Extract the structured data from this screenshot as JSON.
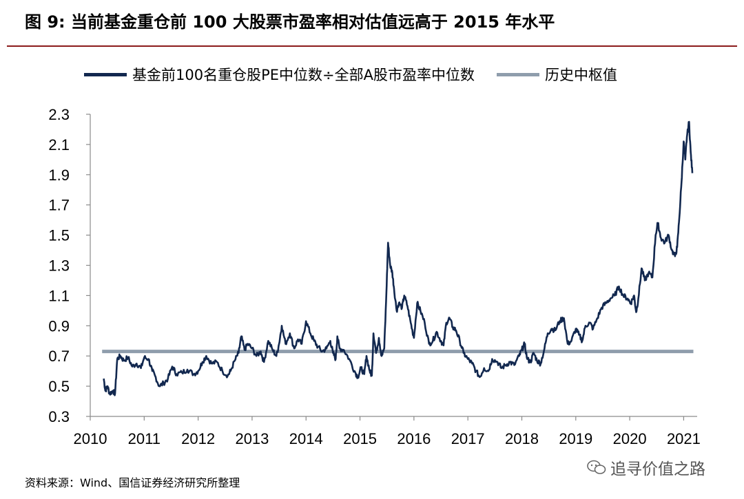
{
  "header": {
    "title": "图  9:  当前基金重仓前 100 大股票市盈率相对估值远高于 2015 年水平"
  },
  "legend": [
    {
      "label": "基金前100名重仓股PE中位数÷全部A股市盈率中位数",
      "color": "#12284f"
    },
    {
      "label": "历史中枢值",
      "color": "#8f9dac"
    }
  ],
  "footer": {
    "source": "资料来源：Wind、国信证券经济研究所整理",
    "watermark": "追寻价值之路"
  },
  "chart_data": {
    "type": "line",
    "title": "",
    "xlabel": "",
    "ylabel": "",
    "xlim": [
      2010,
      2021.25
    ],
    "ylim": [
      0.3,
      2.3
    ],
    "x_ticks": [
      "2010",
      "2011",
      "2012",
      "2013",
      "2014",
      "2015",
      "2016",
      "2017",
      "2018",
      "2019",
      "2020",
      "2021"
    ],
    "y_ticks": [
      "0.3",
      "0.5",
      "0.7",
      "0.9",
      "1.1",
      "1.3",
      "1.5",
      "1.7",
      "1.9",
      "2.1",
      "2.3"
    ],
    "grid": false,
    "legend_position": "top",
    "series": [
      {
        "name": "基金前100名重仓股PE中位数÷全部A股市盈率中位数",
        "color": "#12284f",
        "points": [
          [
            2010.25,
            0.55
          ],
          [
            2010.28,
            0.47
          ],
          [
            2010.32,
            0.5
          ],
          [
            2010.36,
            0.45
          ],
          [
            2010.42,
            0.47
          ],
          [
            2010.46,
            0.45
          ],
          [
            2010.5,
            0.68
          ],
          [
            2010.56,
            0.7
          ],
          [
            2010.62,
            0.67
          ],
          [
            2010.7,
            0.69
          ],
          [
            2010.78,
            0.63
          ],
          [
            2010.86,
            0.65
          ],
          [
            2010.94,
            0.62
          ],
          [
            2011.0,
            0.69
          ],
          [
            2011.08,
            0.68
          ],
          [
            2011.15,
            0.6
          ],
          [
            2011.2,
            0.57
          ],
          [
            2011.28,
            0.5
          ],
          [
            2011.36,
            0.52
          ],
          [
            2011.44,
            0.55
          ],
          [
            2011.52,
            0.63
          ],
          [
            2011.6,
            0.58
          ],
          [
            2011.7,
            0.59
          ],
          [
            2011.8,
            0.61
          ],
          [
            2011.92,
            0.58
          ],
          [
            2012.0,
            0.6
          ],
          [
            2012.08,
            0.66
          ],
          [
            2012.15,
            0.7
          ],
          [
            2012.25,
            0.65
          ],
          [
            2012.35,
            0.66
          ],
          [
            2012.45,
            0.6
          ],
          [
            2012.55,
            0.57
          ],
          [
            2012.6,
            0.6
          ],
          [
            2012.68,
            0.67
          ],
          [
            2012.75,
            0.72
          ],
          [
            2012.8,
            0.83
          ],
          [
            2012.86,
            0.74
          ],
          [
            2012.92,
            0.78
          ],
          [
            2013.0,
            0.75
          ],
          [
            2013.08,
            0.7
          ],
          [
            2013.16,
            0.73
          ],
          [
            2013.22,
            0.66
          ],
          [
            2013.3,
            0.8
          ],
          [
            2013.38,
            0.74
          ],
          [
            2013.45,
            0.7
          ],
          [
            2013.5,
            0.78
          ],
          [
            2013.55,
            0.9
          ],
          [
            2013.62,
            0.78
          ],
          [
            2013.7,
            0.85
          ],
          [
            2013.78,
            0.75
          ],
          [
            2013.85,
            0.81
          ],
          [
            2013.92,
            0.78
          ],
          [
            2014.0,
            0.93
          ],
          [
            2014.08,
            0.85
          ],
          [
            2014.15,
            0.8
          ],
          [
            2014.22,
            0.76
          ],
          [
            2014.3,
            0.73
          ],
          [
            2014.38,
            0.75
          ],
          [
            2014.45,
            0.8
          ],
          [
            2014.5,
            0.72
          ],
          [
            2014.55,
            0.68
          ],
          [
            2014.58,
            0.83
          ],
          [
            2014.62,
            0.75
          ],
          [
            2014.7,
            0.74
          ],
          [
            2014.8,
            0.68
          ],
          [
            2014.9,
            0.6
          ],
          [
            2014.96,
            0.56
          ],
          [
            2015.02,
            0.62
          ],
          [
            2015.08,
            0.58
          ],
          [
            2015.12,
            0.7
          ],
          [
            2015.18,
            0.6
          ],
          [
            2015.22,
            0.57
          ],
          [
            2015.25,
            0.85
          ],
          [
            2015.3,
            0.72
          ],
          [
            2015.35,
            0.82
          ],
          [
            2015.4,
            0.7
          ],
          [
            2015.45,
            0.75
          ],
          [
            2015.49,
            1.12
          ],
          [
            2015.52,
            1.45
          ],
          [
            2015.56,
            1.3
          ],
          [
            2015.6,
            1.25
          ],
          [
            2015.63,
            1.15
          ],
          [
            2015.68,
            1.0
          ],
          [
            2015.72,
            1.05
          ],
          [
            2015.78,
            1.02
          ],
          [
            2015.82,
            1.1
          ],
          [
            2015.88,
            1.03
          ],
          [
            2015.94,
            0.92
          ],
          [
            2016.0,
            0.82
          ],
          [
            2016.06,
            1.05
          ],
          [
            2016.12,
            1.0
          ],
          [
            2016.2,
            0.92
          ],
          [
            2016.28,
            0.78
          ],
          [
            2016.35,
            0.8
          ],
          [
            2016.42,
            0.86
          ],
          [
            2016.5,
            0.8
          ],
          [
            2016.55,
            0.77
          ],
          [
            2016.6,
            0.92
          ],
          [
            2016.66,
            0.95
          ],
          [
            2016.72,
            0.89
          ],
          [
            2016.78,
            0.87
          ],
          [
            2016.85,
            0.8
          ],
          [
            2016.92,
            0.72
          ],
          [
            2017.0,
            0.68
          ],
          [
            2017.08,
            0.65
          ],
          [
            2017.15,
            0.6
          ],
          [
            2017.22,
            0.56
          ],
          [
            2017.3,
            0.62
          ],
          [
            2017.38,
            0.6
          ],
          [
            2017.45,
            0.68
          ],
          [
            2017.55,
            0.66
          ],
          [
            2017.62,
            0.62
          ],
          [
            2017.7,
            0.64
          ],
          [
            2017.78,
            0.66
          ],
          [
            2017.86,
            0.64
          ],
          [
            2017.95,
            0.7
          ],
          [
            2018.0,
            0.74
          ],
          [
            2018.05,
            0.78
          ],
          [
            2018.1,
            0.68
          ],
          [
            2018.16,
            0.66
          ],
          [
            2018.22,
            0.72
          ],
          [
            2018.28,
            0.67
          ],
          [
            2018.35,
            0.65
          ],
          [
            2018.42,
            0.75
          ],
          [
            2018.48,
            0.85
          ],
          [
            2018.55,
            0.88
          ],
          [
            2018.62,
            0.87
          ],
          [
            2018.7,
            0.93
          ],
          [
            2018.78,
            0.95
          ],
          [
            2018.85,
            0.78
          ],
          [
            2018.92,
            0.8
          ],
          [
            2019.0,
            0.88
          ],
          [
            2019.06,
            0.84
          ],
          [
            2019.12,
            0.8
          ],
          [
            2019.18,
            0.9
          ],
          [
            2019.26,
            0.92
          ],
          [
            2019.32,
            0.88
          ],
          [
            2019.4,
            0.95
          ],
          [
            2019.48,
            1.02
          ],
          [
            2019.56,
            1.05
          ],
          [
            2019.64,
            1.08
          ],
          [
            2019.72,
            1.1
          ],
          [
            2019.8,
            1.16
          ],
          [
            2019.88,
            1.1
          ],
          [
            2019.96,
            1.08
          ],
          [
            2020.02,
            1.05
          ],
          [
            2020.08,
            1.1
          ],
          [
            2020.12,
            0.99
          ],
          [
            2020.16,
            1.08
          ],
          [
            2020.22,
            1.28
          ],
          [
            2020.28,
            1.2
          ],
          [
            2020.35,
            1.25
          ],
          [
            2020.42,
            1.22
          ],
          [
            2020.48,
            1.5
          ],
          [
            2020.52,
            1.58
          ],
          [
            2020.58,
            1.48
          ],
          [
            2020.65,
            1.45
          ],
          [
            2020.72,
            1.5
          ],
          [
            2020.78,
            1.4
          ],
          [
            2020.84,
            1.36
          ],
          [
            2020.88,
            1.42
          ],
          [
            2020.92,
            1.62
          ],
          [
            2020.96,
            1.85
          ],
          [
            2021.0,
            2.12
          ],
          [
            2021.03,
            2.0
          ],
          [
            2021.06,
            2.15
          ],
          [
            2021.1,
            2.25
          ],
          [
            2021.13,
            2.05
          ],
          [
            2021.16,
            1.91
          ]
        ]
      },
      {
        "name": "历史中枢值",
        "color": "#8f9dac",
        "value": 0.73
      }
    ]
  }
}
